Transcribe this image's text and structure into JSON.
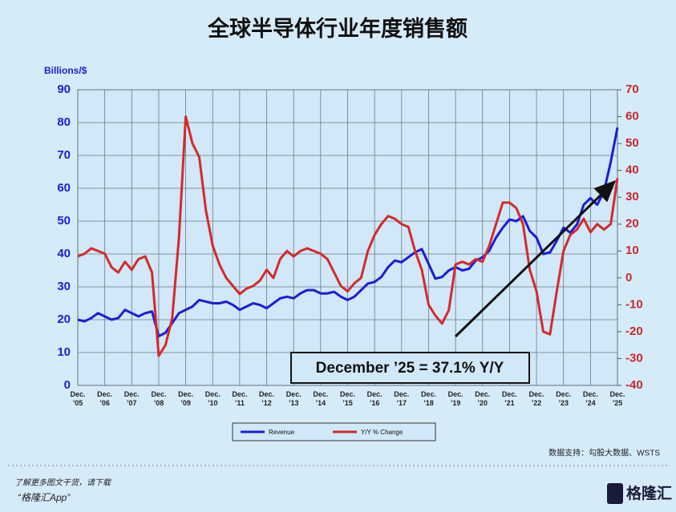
{
  "chart_data": {
    "type": "line",
    "title": "全球半导体行业年度销售额",
    "y_label": "Billions/$",
    "annotation": "December ’25 = 37.1% Y/Y",
    "source": "数据支持：勾股大数据、WSTS",
    "grid": true,
    "legend": "bottom",
    "x": [
      "2005-12",
      "2006-03",
      "2006-06",
      "2006-09",
      "2006-12",
      "2007-03",
      "2007-06",
      "2007-09",
      "2007-12",
      "2008-03",
      "2008-06",
      "2008-09",
      "2008-12",
      "2009-03",
      "2009-06",
      "2009-09",
      "2009-12",
      "2010-03",
      "2010-06",
      "2010-09",
      "2010-12",
      "2011-03",
      "2011-06",
      "2011-09",
      "2011-12",
      "2012-03",
      "2012-06",
      "2012-09",
      "2012-12",
      "2013-03",
      "2013-06",
      "2013-09",
      "2013-12",
      "2014-03",
      "2014-06",
      "2014-09",
      "2014-12",
      "2015-03",
      "2015-06",
      "2015-09",
      "2015-12",
      "2016-03",
      "2016-06",
      "2016-09",
      "2016-12",
      "2017-03",
      "2017-06",
      "2017-09",
      "2017-12",
      "2018-03",
      "2018-06",
      "2018-09",
      "2018-12",
      "2019-03",
      "2019-06",
      "2019-09",
      "2019-12",
      "2020-03",
      "2020-06",
      "2020-09",
      "2020-12",
      "2021-03",
      "2021-06",
      "2021-09",
      "2021-12",
      "2022-03",
      "2022-06",
      "2022-09",
      "2022-12",
      "2023-03",
      "2023-06",
      "2023-09",
      "2023-12",
      "2024-03",
      "2024-06",
      "2024-09",
      "2024-12",
      "2025-03",
      "2025-06",
      "2025-09",
      "2025-12"
    ],
    "xlim": [
      "2005-12",
      "2025-12"
    ],
    "xticks": [
      {
        "value": "2005-12",
        "label": "Dec. ’05"
      },
      {
        "value": "2006-12",
        "label": "Dec. ’06"
      },
      {
        "value": "2007-12",
        "label": "Dec. ’07"
      },
      {
        "value": "2008-12",
        "label": "Dec. ’08"
      },
      {
        "value": "2009-12",
        "label": "Dec. ’09"
      },
      {
        "value": "2010-12",
        "label": "Dec. ’10"
      },
      {
        "value": "2011-12",
        "label": "Dec. ’11"
      },
      {
        "value": "2012-12",
        "label": "Dec. ’12"
      },
      {
        "value": "2013-12",
        "label": "Dec. ’13"
      },
      {
        "value": "2014-12",
        "label": "Dec. ’14"
      },
      {
        "value": "2015-12",
        "label": "Dec. ’15"
      },
      {
        "value": "2016-12",
        "label": "Dec. ’16"
      },
      {
        "value": "2017-12",
        "label": "Dec. ’17"
      },
      {
        "value": "2018-12",
        "label": "Dec. ’18"
      },
      {
        "value": "2019-12",
        "label": "Dec. ’19"
      },
      {
        "value": "2020-12",
        "label": "Dec. ’20"
      },
      {
        "value": "2021-12",
        "label": "Dec. ’21"
      },
      {
        "value": "2022-12",
        "label": "Dec. ’22"
      },
      {
        "value": "2023-12",
        "label": "Dec. ’23"
      },
      {
        "value": "2024-12",
        "label": "Dec. ’24"
      },
      {
        "value": "2025-12",
        "label": "Dec. ’25"
      }
    ],
    "ylim": [
      0,
      90
    ],
    "yticks": [
      0,
      10,
      20,
      30,
      40,
      50,
      60,
      70,
      80,
      90
    ],
    "y2lim": [
      -40,
      70
    ],
    "y2ticks": [
      -40,
      -30,
      -20,
      -10,
      0,
      10,
      20,
      30,
      40,
      50,
      60,
      70
    ],
    "series": [
      {
        "name": "Revenue",
        "color": "#1c1cd6",
        "values": [
          20,
          19.5,
          20.5,
          22,
          21,
          20,
          20.5,
          23,
          22,
          21,
          22,
          22.5,
          15,
          16,
          19,
          22,
          23,
          24,
          26,
          25.5,
          25,
          25,
          25.5,
          24.5,
          23,
          24,
          25,
          24.5,
          23.5,
          25,
          26.5,
          27,
          26.5,
          28,
          29,
          29,
          28,
          28,
          28.5,
          27,
          26,
          27,
          29,
          31,
          31.5,
          33,
          36,
          38,
          37.5,
          39,
          40.5,
          41.5,
          37,
          32.5,
          33,
          35,
          36,
          35,
          35.5,
          38,
          39,
          41,
          45,
          48,
          50.5,
          50,
          51.5,
          47,
          45,
          40,
          40.5,
          44,
          48,
          46.5,
          49,
          55,
          57,
          55,
          59,
          68,
          78.5
        ]
      },
      {
        "name": "Y/Y % Change",
        "color": "#d42a2a",
        "axis": "y2",
        "values": [
          8,
          9,
          11,
          10,
          9,
          4,
          2,
          6,
          3,
          7,
          8,
          2,
          -29,
          -25,
          -15,
          15,
          60,
          50,
          45,
          25,
          12,
          5,
          0,
          -3,
          -6,
          -4,
          -3,
          -1,
          3,
          0,
          7,
          10,
          8,
          10,
          11,
          10,
          9,
          7,
          2,
          -3,
          -5,
          -2,
          0,
          10,
          16,
          20,
          23,
          22,
          20,
          19,
          10,
          3,
          -10,
          -14,
          -17,
          -12,
          5,
          6,
          5,
          7,
          6,
          12,
          20,
          28,
          28,
          26,
          20,
          3,
          -5,
          -20,
          -21,
          -5,
          10,
          16,
          18,
          22,
          17,
          20,
          18,
          20,
          37.1
        ]
      }
    ]
  },
  "footer": {
    "promo": "了解更多图文干货，请下载",
    "app": "“格隆汇App”",
    "logo": "格隆汇"
  }
}
